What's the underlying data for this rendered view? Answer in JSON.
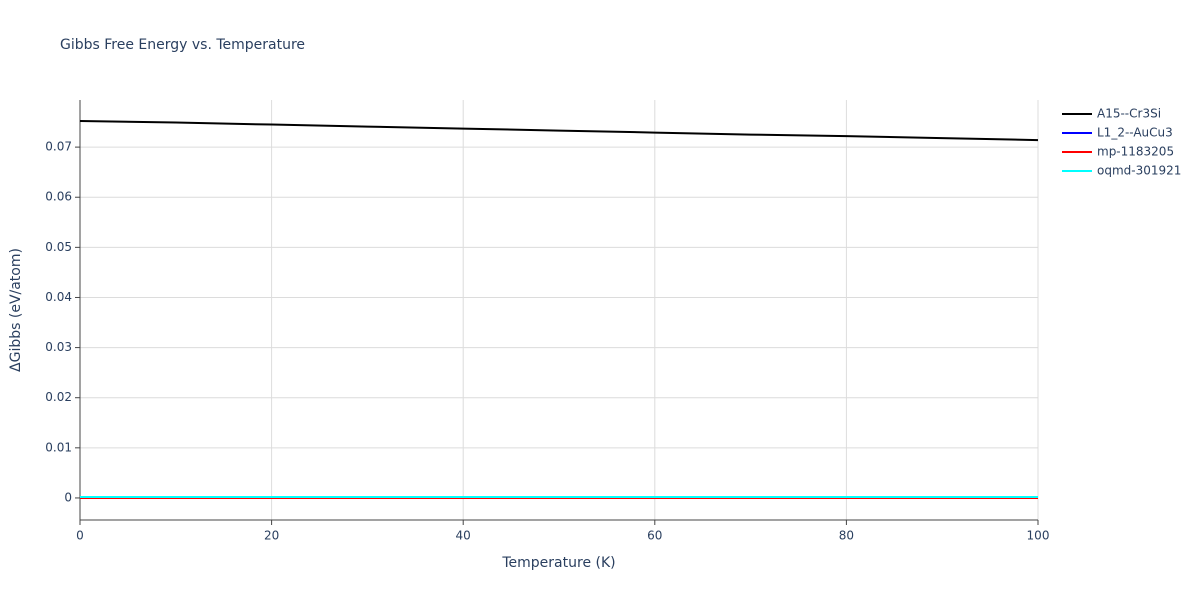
{
  "chart_data": {
    "type": "line",
    "title": "Gibbs Free Energy vs. Temperature",
    "x_label": "Temperature (K)",
    "y_label": "ΔGibbs (eV/atom)",
    "x": [
      0,
      10,
      20,
      30,
      40,
      50,
      60,
      70,
      80,
      90,
      100
    ],
    "series": [
      {
        "name": "A15--Cr3Si",
        "color": "#000000",
        "values": [
          0.0752,
          0.0749,
          0.0745,
          0.0741,
          0.0737,
          0.0733,
          0.0729,
          0.0725,
          0.0722,
          0.0718,
          0.0714
        ]
      },
      {
        "name": "L1_2--AuCu3",
        "color": "#0000ff",
        "values": [
          0,
          0,
          0,
          0,
          0,
          0,
          0,
          0,
          0,
          0,
          0
        ]
      },
      {
        "name": "mp-1183205",
        "color": "#ff0000",
        "values": [
          0,
          0,
          0,
          0,
          0,
          0,
          0,
          0,
          0,
          0,
          0
        ]
      },
      {
        "name": "oqmd-301921",
        "color": "#00ffff",
        "values": [
          0.0002,
          0.0002,
          0.0002,
          0.0002,
          0.0002,
          0.0002,
          0.0002,
          0.0002,
          0.0002,
          0.0002,
          0.0002
        ]
      }
    ],
    "xlim": [
      0,
      100
    ],
    "xticks": [
      0,
      20,
      40,
      60,
      80,
      100
    ],
    "ylim": [
      -0.0044,
      0.0794
    ],
    "yticks": [
      0,
      0.01,
      0.02,
      0.03,
      0.04,
      0.05,
      0.06,
      0.07
    ],
    "grid": true
  }
}
